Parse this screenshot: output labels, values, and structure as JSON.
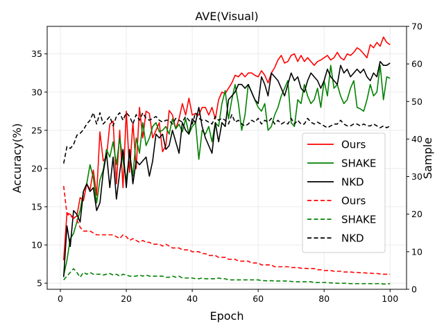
{
  "chart_data": {
    "type": "line",
    "title": "AVE(Visual)",
    "xlabel": "Epoch",
    "ylabel": "Accuracy(%)",
    "y2label": "Sample",
    "xlim": [
      -4,
      105
    ],
    "ylim": [
      4.2,
      38.6
    ],
    "y2lim": [
      0,
      70
    ],
    "xticks": [
      0,
      20,
      40,
      60,
      80,
      100
    ],
    "yticks": [
      5,
      10,
      15,
      20,
      25,
      30,
      35
    ],
    "y2ticks": [
      0,
      10,
      20,
      30,
      40,
      50,
      60,
      70
    ],
    "grid": true,
    "legend_position": "center-right",
    "x": [
      1,
      2,
      3,
      4,
      5,
      6,
      7,
      8,
      9,
      10,
      11,
      12,
      13,
      14,
      15,
      16,
      17,
      18,
      19,
      20,
      21,
      22,
      23,
      24,
      25,
      26,
      27,
      28,
      29,
      30,
      31,
      32,
      33,
      34,
      35,
      36,
      37,
      38,
      39,
      40,
      41,
      42,
      43,
      44,
      45,
      46,
      47,
      48,
      49,
      50,
      51,
      52,
      53,
      54,
      55,
      56,
      57,
      58,
      59,
      60,
      61,
      62,
      63,
      64,
      65,
      66,
      67,
      68,
      69,
      70,
      71,
      72,
      73,
      74,
      75,
      76,
      77,
      78,
      79,
      80,
      81,
      82,
      83,
      84,
      85,
      86,
      87,
      88,
      89,
      90,
      91,
      92,
      93,
      94,
      95,
      96,
      97,
      98,
      99,
      100
    ],
    "series": [
      {
        "name": "Ours",
        "axis": "left",
        "color": "#ff0000",
        "style": "solid",
        "values": [
          8.0,
          14.2,
          14.0,
          13.5,
          13.8,
          16.2,
          15.8,
          18.0,
          17.2,
          19.8,
          16.5,
          24.8,
          21.0,
          21.5,
          25.8,
          26.2,
          18.0,
          25.0,
          17.5,
          27.5,
          19.5,
          26.0,
          20.0,
          28.0,
          24.0,
          27.5,
          27.2,
          24.0,
          25.0,
          26.0,
          22.2,
          23.0,
          27.6,
          27.0,
          25.2,
          26.5,
          28.5,
          27.0,
          29.2,
          27.0,
          27.2,
          27.0,
          28.0,
          28.0,
          27.0,
          28.0,
          26.5,
          29.0,
          30.0,
          29.8,
          30.5,
          31.2,
          32.2,
          32.0,
          32.5,
          32.0,
          32.5,
          32.5,
          32.2,
          32.0,
          32.8,
          32.2,
          31.2,
          32.5,
          33.2,
          34.2,
          34.8,
          33.8,
          34.0,
          34.8,
          35.0,
          34.0,
          34.8,
          34.0,
          34.5,
          34.0,
          33.5,
          34.0,
          34.2,
          34.5,
          34.8,
          34.2,
          34.5,
          35.2,
          34.5,
          34.2,
          35.0,
          34.8,
          35.2,
          35.8,
          35.5,
          35.0,
          34.5,
          36.2,
          35.8,
          36.5,
          36.0,
          37.2,
          36.5,
          36.2
        ]
      },
      {
        "name": "SHAKE",
        "axis": "left",
        "color": "#008000",
        "style": "solid",
        "values": [
          6.0,
          8.0,
          10.8,
          11.5,
          13.0,
          14.5,
          17.0,
          18.0,
          20.5,
          18.8,
          15.5,
          18.5,
          19.8,
          22.5,
          21.5,
          23.5,
          20.5,
          24.0,
          21.0,
          18.5,
          22.0,
          19.0,
          24.0,
          22.0,
          26.0,
          23.0,
          24.0,
          25.5,
          26.0,
          24.8,
          25.0,
          25.5,
          24.5,
          26.5,
          25.2,
          25.8,
          24.8,
          26.5,
          24.5,
          25.5,
          26.0,
          21.2,
          25.0,
          24.5,
          25.5,
          23.5,
          26.0,
          25.5,
          28.5,
          30.2,
          26.5,
          29.0,
          31.0,
          28.5,
          25.0,
          27.0,
          31.0,
          30.0,
          29.0,
          28.0,
          27.5,
          28.5,
          25.0,
          25.5,
          27.0,
          28.0,
          29.5,
          30.5,
          31.5,
          26.0,
          25.5,
          29.0,
          28.5,
          31.0,
          29.5,
          28.5,
          29.0,
          30.5,
          28.0,
          31.5,
          29.5,
          33.5,
          30.5,
          31.0,
          29.5,
          28.5,
          29.0,
          30.5,
          31.5,
          28.0,
          27.8,
          27.5,
          29.0,
          31.0,
          29.5,
          30.0,
          33.5,
          29.0,
          32.0,
          31.8
        ]
      },
      {
        "name": "NKD",
        "axis": "left",
        "color": "#000000",
        "style": "solid",
        "values": [
          5.8,
          12.5,
          9.8,
          14.5,
          14.0,
          13.0,
          17.0,
          18.0,
          17.0,
          17.5,
          14.5,
          15.5,
          19.5,
          22.0,
          17.5,
          21.5,
          16.0,
          19.5,
          22.5,
          17.5,
          22.5,
          18.0,
          21.0,
          20.5,
          21.0,
          21.5,
          19.0,
          21.0,
          24.5,
          24.0,
          24.5,
          22.5,
          23.0,
          25.0,
          23.5,
          22.0,
          26.0,
          25.0,
          24.5,
          26.5,
          26.0,
          28.0,
          25.5,
          24.0,
          23.0,
          22.0,
          26.0,
          23.5,
          26.0,
          25.5,
          29.0,
          29.5,
          30.0,
          31.0,
          31.0,
          30.5,
          31.0,
          30.0,
          29.0,
          28.5,
          32.0,
          31.0,
          29.5,
          32.5,
          32.0,
          31.5,
          30.5,
          29.5,
          31.0,
          32.5,
          31.5,
          32.0,
          30.5,
          30.0,
          31.5,
          32.5,
          32.0,
          31.5,
          30.5,
          31.5,
          33.0,
          32.0,
          31.5,
          31.0,
          33.5,
          32.5,
          33.0,
          32.0,
          32.5,
          33.0,
          32.5,
          33.0,
          32.0,
          31.5,
          32.5,
          32.0,
          34.0,
          33.5,
          33.5,
          33.8
        ]
      },
      {
        "name": "Ours",
        "axis": "right",
        "color": "#ff0000",
        "style": "dashed",
        "values": [
          27.5,
          20.0,
          19.5,
          19.0,
          18.5,
          16.5,
          15.5,
          15.5,
          15.5,
          15.0,
          14.5,
          14.5,
          14.5,
          14.5,
          14.5,
          14.5,
          14.0,
          13.5,
          14.5,
          14.0,
          13.0,
          13.5,
          13.0,
          12.5,
          13.0,
          12.5,
          12.5,
          12.0,
          12.0,
          12.0,
          11.5,
          12.0,
          11.5,
          11.0,
          11.0,
          11.0,
          10.5,
          10.5,
          10.5,
          10.0,
          10.0,
          10.0,
          9.5,
          9.5,
          9.0,
          9.0,
          9.0,
          8.5,
          8.5,
          8.5,
          8.0,
          8.0,
          8.0,
          7.5,
          7.5,
          7.5,
          7.5,
          7.0,
          7.0,
          7.0,
          6.5,
          6.5,
          6.5,
          6.5,
          6.0,
          6.0,
          6.0,
          6.0,
          6.0,
          5.8,
          5.8,
          5.8,
          5.6,
          5.6,
          5.5,
          5.5,
          5.5,
          5.2,
          5.2,
          5.0,
          5.0,
          5.0,
          4.8,
          4.8,
          4.8,
          4.6,
          4.6,
          4.6,
          4.5,
          4.5,
          4.4,
          4.4,
          4.3,
          4.3,
          4.2,
          4.2,
          4.1,
          4.0,
          4.0,
          4.0
        ]
      },
      {
        "name": "SHAKE",
        "axis": "right",
        "color": "#008000",
        "style": "dashed",
        "values": [
          2.5,
          3.5,
          4.5,
          5.5,
          4.5,
          3.2,
          4.5,
          4.0,
          4.5,
          4.0,
          4.0,
          4.0,
          3.8,
          4.0,
          4.2,
          3.8,
          4.0,
          3.5,
          4.0,
          3.8,
          3.5,
          3.5,
          3.5,
          3.8,
          3.5,
          3.8,
          3.5,
          3.5,
          3.5,
          3.5,
          3.5,
          3.2,
          3.2,
          3.5,
          3.2,
          3.5,
          3.0,
          3.0,
          3.0,
          3.0,
          2.8,
          2.8,
          3.0,
          2.8,
          2.8,
          2.8,
          2.8,
          3.0,
          2.8,
          2.8,
          2.5,
          2.5,
          2.5,
          2.5,
          2.5,
          2.5,
          2.5,
          2.5,
          2.5,
          2.5,
          2.3,
          2.3,
          2.2,
          2.3,
          2.2,
          2.2,
          2.2,
          2.2,
          2.2,
          2.1,
          2.0,
          2.0,
          2.0,
          2.0,
          2.0,
          2.0,
          1.8,
          1.8,
          1.8,
          1.8,
          1.8,
          1.7,
          1.7,
          1.6,
          1.6,
          1.6,
          1.6,
          1.5,
          1.5,
          1.5,
          1.5,
          1.5,
          1.5,
          1.5,
          1.5,
          1.5,
          1.5,
          1.4,
          1.4,
          1.5
        ]
      },
      {
        "name": "NKD",
        "axis": "right",
        "color": "#000000",
        "style": "dashed",
        "values": [
          33.5,
          38.0,
          37.5,
          38.5,
          41.0,
          41.5,
          42.5,
          44.0,
          45.0,
          47.0,
          44.0,
          47.0,
          44.0,
          45.0,
          46.0,
          43.5,
          46.0,
          47.0,
          45.0,
          47.0,
          46.0,
          44.0,
          46.5,
          45.0,
          47.0,
          45.5,
          45.0,
          45.5,
          46.0,
          45.0,
          44.5,
          45.0,
          45.0,
          44.0,
          45.5,
          45.0,
          44.5,
          46.0,
          45.0,
          44.0,
          47.0,
          45.5,
          45.0,
          45.0,
          44.5,
          44.0,
          46.0,
          45.0,
          45.5,
          45.0,
          44.0,
          46.5,
          44.5,
          45.0,
          44.0,
          43.5,
          44.0,
          45.0,
          44.5,
          45.5,
          44.0,
          45.0,
          44.5,
          45.5,
          44.0,
          45.0,
          44.0,
          44.5,
          44.0,
          45.5,
          44.0,
          45.0,
          44.0,
          44.0,
          45.5,
          44.5,
          44.0,
          44.5,
          44.0,
          43.5,
          43.0,
          43.5,
          44.0,
          44.0,
          45.0,
          44.0,
          43.5,
          43.5,
          44.0,
          44.0,
          43.5,
          44.0,
          43.5,
          43.5,
          44.0,
          43.5,
          43.0,
          43.5,
          43.0,
          43.5
        ]
      }
    ]
  }
}
